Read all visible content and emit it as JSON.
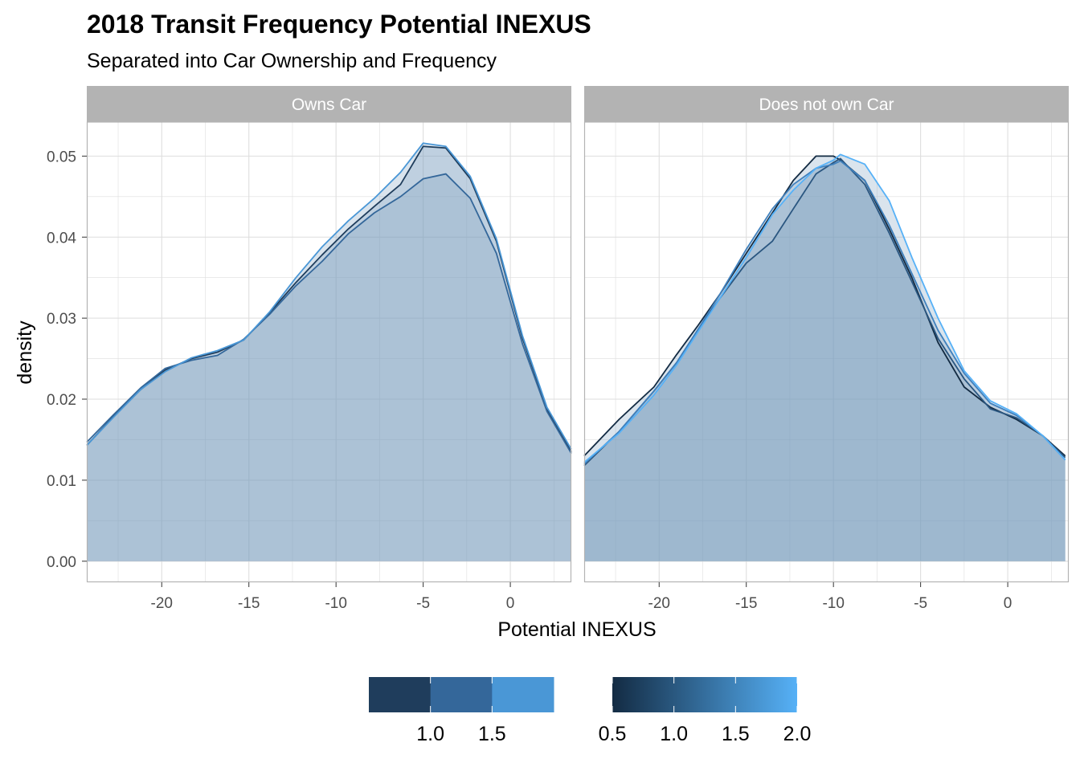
{
  "chart_data": {
    "type": "area",
    "title": "2018 Transit Frequency Potential INEXUS",
    "subtitle": "Separated into Car Ownership and Frequency",
    "xlabel": "Potential INEXUS",
    "ylabel": "density",
    "xlim": [
      -24.3,
      3.5
    ],
    "ylim": [
      -0.0026,
      0.0542
    ],
    "x_ticks": [
      -20,
      -15,
      -10,
      -5,
      0
    ],
    "x_tick_labels": [
      "-20",
      "-15",
      "-10",
      "-5",
      "0"
    ],
    "y_ticks": [
      0.0,
      0.01,
      0.02,
      0.03,
      0.04,
      0.05
    ],
    "y_tick_labels": [
      "0.00",
      "0.01",
      "0.02",
      "0.03",
      "0.04",
      "0.05"
    ],
    "grid": true,
    "legend_position": "bottom",
    "panels": [
      {
        "label": "Owns Car",
        "series": [
          {
            "x": [
              -24.3,
              -22.8,
              -21.2,
              -19.8,
              -18.3,
              -16.8,
              -15.3,
              -13.8,
              -12.3,
              -10.8,
              -9.3,
              -7.8,
              -6.3,
              -5.0,
              -3.7,
              -2.3,
              -0.8,
              0.7,
              2.1,
              3.5
            ],
            "values": [
              0.0143,
              0.0178,
              0.0212,
              0.0236,
              0.025,
              0.0258,
              0.0273,
              0.0307,
              0.0344,
              0.0378,
              0.041,
              0.0438,
              0.0465,
              0.0512,
              0.051,
              0.0472,
              0.0395,
              0.0275,
              0.0188,
              0.0135
            ],
            "color": "#1f3d5c"
          },
          {
            "x": [
              -24.3,
              -22.8,
              -21.2,
              -19.8,
              -18.3,
              -16.8,
              -15.3,
              -13.8,
              -12.3,
              -10.8,
              -9.3,
              -7.8,
              -6.3,
              -5.0,
              -3.7,
              -2.3,
              -0.8,
              0.7,
              2.1,
              3.5
            ],
            "values": [
              0.0147,
              0.018,
              0.0214,
              0.0238,
              0.0248,
              0.0254,
              0.0274,
              0.0305,
              0.034,
              0.037,
              0.0404,
              0.043,
              0.045,
              0.0472,
              0.0478,
              0.0448,
              0.038,
              0.0268,
              0.0185,
              0.0133
            ],
            "color": "#34679a"
          },
          {
            "x": [
              -24.3,
              -22.8,
              -21.2,
              -19.8,
              -18.3,
              -16.8,
              -15.3,
              -13.8,
              -12.3,
              -10.8,
              -9.3,
              -7.8,
              -6.3,
              -5.0,
              -3.7,
              -2.3,
              -0.8,
              0.7,
              2.1,
              3.5
            ],
            "values": [
              0.0143,
              0.0177,
              0.0212,
              0.0234,
              0.0251,
              0.026,
              0.0273,
              0.0308,
              0.035,
              0.0388,
              0.042,
              0.0448,
              0.048,
              0.0516,
              0.0512,
              0.0475,
              0.0398,
              0.0278,
              0.019,
              0.0138
            ],
            "color": "#4a97d6"
          }
        ]
      },
      {
        "label": "Does not own Car",
        "series": [
          {
            "x": [
              -24.3,
              -22.3,
              -20.3,
              -19.0,
              -17.8,
              -16.5,
              -15.0,
              -13.5,
              -12.3,
              -11.0,
              -10.0,
              -9.6,
              -8.2,
              -6.8,
              -5.5,
              -4.0,
              -2.5,
              -1.0,
              0.5,
              2.0,
              3.3
            ],
            "values": [
              0.013,
              0.0175,
              0.0215,
              0.0255,
              0.029,
              0.033,
              0.038,
              0.043,
              0.047,
              0.05,
              0.05,
              0.0495,
              0.047,
              0.041,
              0.035,
              0.027,
              0.0215,
              0.019,
              0.0175,
              0.0155,
              0.013
            ],
            "color": "#132b43"
          },
          {
            "x": [
              -24.3,
              -22.3,
              -20.3,
              -19.0,
              -17.8,
              -16.5,
              -15.0,
              -13.5,
              -12.3,
              -11.0,
              -10.0,
              -9.6,
              -8.2,
              -6.8,
              -5.5,
              -4.0,
              -2.5,
              -1.0,
              0.5,
              2.0,
              3.3
            ],
            "values": [
              0.0118,
              0.016,
              0.021,
              0.0245,
              0.0285,
              0.0325,
              0.0368,
              0.0395,
              0.0435,
              0.0478,
              0.0492,
              0.0497,
              0.0465,
              0.0405,
              0.0345,
              0.0275,
              0.0225,
              0.0188,
              0.0177,
              0.0155,
              0.0128
            ],
            "color": "#2a5680"
          },
          {
            "x": [
              -24.3,
              -22.3,
              -20.3,
              -19.0,
              -17.8,
              -16.5,
              -15.0,
              -13.5,
              -12.3,
              -11.0,
              -10.0,
              -9.6,
              -8.2,
              -6.8,
              -5.5,
              -4.0,
              -2.5,
              -1.0,
              0.5,
              2.0,
              3.3
            ],
            "values": [
              0.012,
              0.016,
              0.021,
              0.0245,
              0.0285,
              0.033,
              0.0385,
              0.0435,
              0.0465,
              0.0485,
              0.049,
              0.0494,
              0.047,
              0.0415,
              0.0355,
              0.0285,
              0.0232,
              0.0195,
              0.018,
              0.0155,
              0.0125
            ],
            "color": "#3f80bd"
          },
          {
            "x": [
              -24.3,
              -22.3,
              -20.3,
              -19.0,
              -17.8,
              -16.5,
              -15.0,
              -13.5,
              -12.3,
              -11.0,
              -10.0,
              -9.6,
              -8.2,
              -6.8,
              -5.5,
              -4.0,
              -2.5,
              -1.0,
              0.5,
              2.0,
              3.3
            ],
            "values": [
              0.0122,
              0.0158,
              0.0205,
              0.0242,
              0.0282,
              0.0325,
              0.0375,
              0.0428,
              0.0458,
              0.0485,
              0.0495,
              0.0502,
              0.049,
              0.0445,
              0.0375,
              0.03,
              0.0235,
              0.0198,
              0.0182,
              0.0155,
              0.0125
            ],
            "color": "#56b1f7"
          }
        ]
      }
    ],
    "legends": [
      {
        "type": "stepped",
        "colors": [
          "#1f3d5c",
          "#34679a",
          "#4a97d6"
        ],
        "range": [
          0.5,
          2.0
        ],
        "ticks": [
          1.0,
          1.5
        ],
        "tick_labels": [
          "1.0",
          "1.5"
        ]
      },
      {
        "type": "gradient",
        "colors": [
          "#132b43",
          "#56b1f7"
        ],
        "range": [
          0.5,
          2.0
        ],
        "ticks": [
          0.5,
          1.0,
          1.5,
          2.0
        ],
        "tick_labels": [
          "0.5",
          "1.0",
          "1.5",
          "2.0"
        ]
      }
    ],
    "fill_color": "#7a9dbf"
  }
}
